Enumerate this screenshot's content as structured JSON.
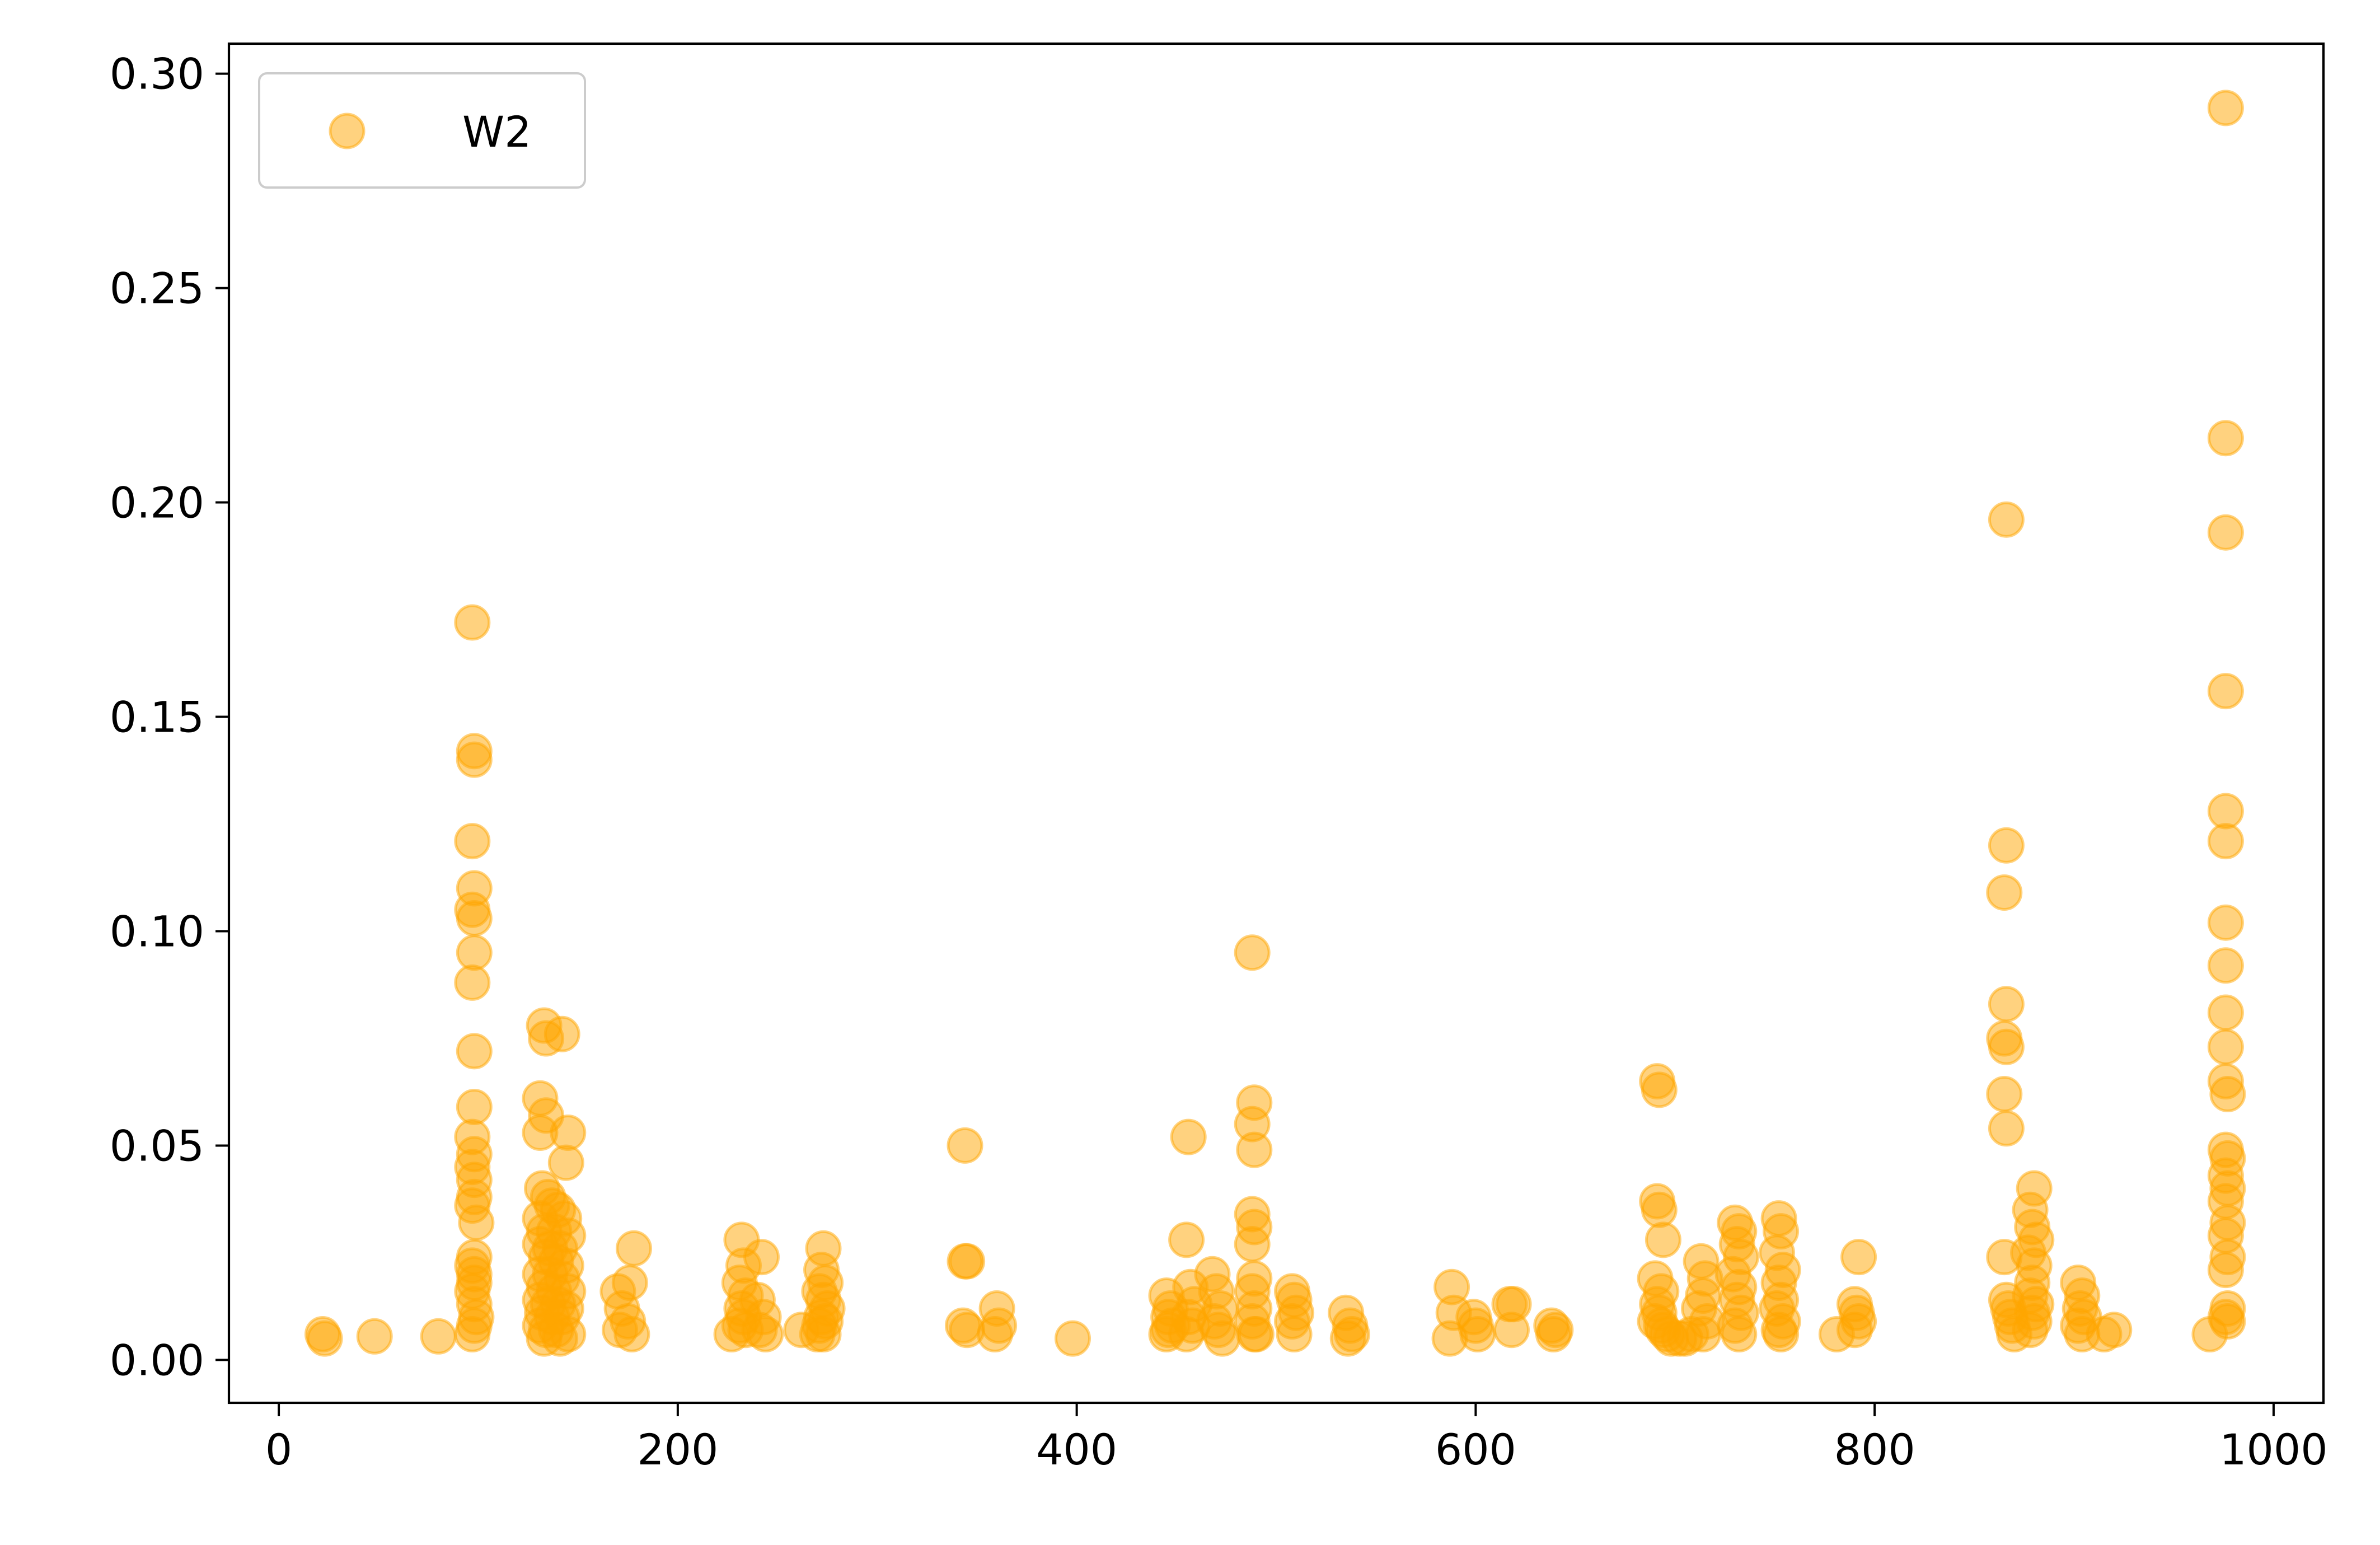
{
  "chart_data": {
    "type": "scatter",
    "title": "",
    "xlabel": "",
    "ylabel": "",
    "xlim": [
      -25,
      1025
    ],
    "ylim": [
      -0.01,
      0.307
    ],
    "xticks": [
      0,
      200,
      400,
      600,
      800,
      1000
    ],
    "yticks": [
      0.0,
      0.05,
      0.1,
      0.15,
      0.2,
      0.25,
      0.3
    ],
    "xtick_labels": [
      "0",
      "200",
      "400",
      "600",
      "800",
      "1000"
    ],
    "ytick_labels": [
      "0.00",
      "0.05",
      "0.10",
      "0.15",
      "0.20",
      "0.25",
      "0.30"
    ],
    "grid": false,
    "legend": {
      "position": "top-left",
      "entries": [
        "W2"
      ]
    },
    "series": [
      {
        "name": "W2",
        "color": "#ffa500",
        "alpha": 0.5,
        "points": [
          [
            22,
            0.006
          ],
          [
            23,
            0.005
          ],
          [
            48,
            0.0055
          ],
          [
            80,
            0.0055
          ],
          [
            97,
            0.172
          ],
          [
            98,
            0.142
          ],
          [
            98,
            0.14
          ],
          [
            97,
            0.121
          ],
          [
            98,
            0.11
          ],
          [
            97,
            0.105
          ],
          [
            98,
            0.103
          ],
          [
            98,
            0.095
          ],
          [
            97,
            0.088
          ],
          [
            98,
            0.072
          ],
          [
            98,
            0.059
          ],
          [
            97,
            0.052
          ],
          [
            98,
            0.048
          ],
          [
            97,
            0.045
          ],
          [
            98,
            0.042
          ],
          [
            98,
            0.038
          ],
          [
            97,
            0.036
          ],
          [
            99,
            0.032
          ],
          [
            98,
            0.024
          ],
          [
            97,
            0.022
          ],
          [
            98,
            0.02
          ],
          [
            98,
            0.018
          ],
          [
            97,
            0.016
          ],
          [
            98,
            0.013
          ],
          [
            99,
            0.01
          ],
          [
            98,
            0.008
          ],
          [
            97,
            0.006
          ],
          [
            133,
            0.078
          ],
          [
            134,
            0.075
          ],
          [
            142,
            0.076
          ],
          [
            131,
            0.061
          ],
          [
            134,
            0.057
          ],
          [
            131,
            0.053
          ],
          [
            145,
            0.053
          ],
          [
            144,
            0.046
          ],
          [
            132,
            0.04
          ],
          [
            135,
            0.038
          ],
          [
            137,
            0.036
          ],
          [
            140,
            0.035
          ],
          [
            131,
            0.033
          ],
          [
            143,
            0.033
          ],
          [
            133,
            0.03
          ],
          [
            138,
            0.03
          ],
          [
            145,
            0.029
          ],
          [
            131,
            0.027
          ],
          [
            136,
            0.026
          ],
          [
            141,
            0.026
          ],
          [
            134,
            0.024
          ],
          [
            139,
            0.023
          ],
          [
            144,
            0.022
          ],
          [
            131,
            0.02
          ],
          [
            136,
            0.02
          ],
          [
            142,
            0.019
          ],
          [
            133,
            0.017
          ],
          [
            138,
            0.016
          ],
          [
            145,
            0.016
          ],
          [
            131,
            0.014
          ],
          [
            135,
            0.013
          ],
          [
            140,
            0.013
          ],
          [
            144,
            0.012
          ],
          [
            132,
            0.011
          ],
          [
            137,
            0.01
          ],
          [
            142,
            0.01
          ],
          [
            131,
            0.008
          ],
          [
            134,
            0.007
          ],
          [
            139,
            0.007
          ],
          [
            145,
            0.006
          ],
          [
            133,
            0.005
          ],
          [
            141,
            0.005
          ],
          [
            170,
            0.016
          ],
          [
            178,
            0.026
          ],
          [
            176,
            0.018
          ],
          [
            172,
            0.012
          ],
          [
            175,
            0.009
          ],
          [
            171,
            0.007
          ],
          [
            177,
            0.006
          ],
          [
            227,
            0.006
          ],
          [
            232,
            0.028
          ],
          [
            233,
            0.022
          ],
          [
            231,
            0.018
          ],
          [
            234,
            0.015
          ],
          [
            232,
            0.012
          ],
          [
            233,
            0.01
          ],
          [
            231,
            0.008
          ],
          [
            234,
            0.007
          ],
          [
            242,
            0.024
          ],
          [
            240,
            0.014
          ],
          [
            243,
            0.01
          ],
          [
            241,
            0.007
          ],
          [
            244,
            0.006
          ],
          [
            262,
            0.007
          ],
          [
            273,
            0.026
          ],
          [
            272,
            0.021
          ],
          [
            274,
            0.018
          ],
          [
            271,
            0.016
          ],
          [
            273,
            0.014
          ],
          [
            275,
            0.012
          ],
          [
            272,
            0.01
          ],
          [
            274,
            0.009
          ],
          [
            271,
            0.008
          ],
          [
            273,
            0.006
          ],
          [
            270,
            0.006
          ],
          [
            344,
            0.05
          ],
          [
            344,
            0.023
          ],
          [
            345,
            0.023
          ],
          [
            343,
            0.008
          ],
          [
            345,
            0.007
          ],
          [
            360,
            0.012
          ],
          [
            361,
            0.008
          ],
          [
            359,
            0.006
          ],
          [
            398,
            0.005
          ],
          [
            445,
            0.015
          ],
          [
            447,
            0.012
          ],
          [
            446,
            0.01
          ],
          [
            448,
            0.008
          ],
          [
            446,
            0.007
          ],
          [
            445,
            0.006
          ],
          [
            456,
            0.052
          ],
          [
            455,
            0.028
          ],
          [
            457,
            0.017
          ],
          [
            459,
            0.013
          ],
          [
            456,
            0.01
          ],
          [
            458,
            0.008
          ],
          [
            455,
            0.006
          ],
          [
            468,
            0.02
          ],
          [
            470,
            0.016
          ],
          [
            472,
            0.012
          ],
          [
            469,
            0.009
          ],
          [
            471,
            0.007
          ],
          [
            473,
            0.005
          ],
          [
            488,
            0.095
          ],
          [
            489,
            0.06
          ],
          [
            488,
            0.055
          ],
          [
            489,
            0.049
          ],
          [
            488,
            0.034
          ],
          [
            489,
            0.031
          ],
          [
            488,
            0.027
          ],
          [
            489,
            0.019
          ],
          [
            488,
            0.016
          ],
          [
            489,
            0.012
          ],
          [
            488,
            0.009
          ],
          [
            489,
            0.006
          ],
          [
            490,
            0.006
          ],
          [
            508,
            0.016
          ],
          [
            509,
            0.014
          ],
          [
            510,
            0.011
          ],
          [
            508,
            0.009
          ],
          [
            509,
            0.006
          ],
          [
            535,
            0.011
          ],
          [
            537,
            0.008
          ],
          [
            538,
            0.006
          ],
          [
            536,
            0.005
          ],
          [
            588,
            0.017
          ],
          [
            589,
            0.011
          ],
          [
            587,
            0.005
          ],
          [
            599,
            0.01
          ],
          [
            600,
            0.008
          ],
          [
            601,
            0.006
          ],
          [
            617,
            0.013
          ],
          [
            619,
            0.013
          ],
          [
            618,
            0.007
          ],
          [
            638,
            0.008
          ],
          [
            640,
            0.007
          ],
          [
            639,
            0.006
          ],
          [
            691,
            0.065
          ],
          [
            692,
            0.063
          ],
          [
            691,
            0.037
          ],
          [
            692,
            0.035
          ],
          [
            694,
            0.028
          ],
          [
            690,
            0.019
          ],
          [
            693,
            0.016
          ],
          [
            691,
            0.013
          ],
          [
            692,
            0.011
          ],
          [
            690,
            0.009
          ],
          [
            693,
            0.008
          ],
          [
            694,
            0.007
          ],
          [
            696,
            0.006
          ],
          [
            698,
            0.005
          ],
          [
            702,
            0.005
          ],
          [
            705,
            0.005
          ],
          [
            708,
            0.006
          ],
          [
            713,
            0.023
          ],
          [
            715,
            0.019
          ],
          [
            714,
            0.015
          ],
          [
            712,
            0.012
          ],
          [
            716,
            0.009
          ],
          [
            714,
            0.006
          ],
          [
            730,
            0.032
          ],
          [
            732,
            0.03
          ],
          [
            731,
            0.027
          ],
          [
            733,
            0.024
          ],
          [
            729,
            0.02
          ],
          [
            732,
            0.017
          ],
          [
            731,
            0.014
          ],
          [
            733,
            0.011
          ],
          [
            730,
            0.008
          ],
          [
            732,
            0.006
          ],
          [
            752,
            0.033
          ],
          [
            753,
            0.03
          ],
          [
            751,
            0.025
          ],
          [
            754,
            0.021
          ],
          [
            752,
            0.018
          ],
          [
            753,
            0.014
          ],
          [
            751,
            0.012
          ],
          [
            754,
            0.009
          ],
          [
            752,
            0.007
          ],
          [
            753,
            0.006
          ],
          [
            781,
            0.006
          ],
          [
            792,
            0.024
          ],
          [
            790,
            0.013
          ],
          [
            791,
            0.011
          ],
          [
            792,
            0.009
          ],
          [
            790,
            0.007
          ],
          [
            866,
            0.196
          ],
          [
            866,
            0.12
          ],
          [
            865,
            0.109
          ],
          [
            866,
            0.083
          ],
          [
            865,
            0.075
          ],
          [
            866,
            0.073
          ],
          [
            865,
            0.062
          ],
          [
            866,
            0.054
          ],
          [
            865,
            0.024
          ],
          [
            866,
            0.014
          ],
          [
            867,
            0.012
          ],
          [
            868,
            0.01
          ],
          [
            869,
            0.008
          ],
          [
            870,
            0.006
          ],
          [
            880,
            0.04
          ],
          [
            878,
            0.035
          ],
          [
            879,
            0.031
          ],
          [
            881,
            0.028
          ],
          [
            877,
            0.025
          ],
          [
            880,
            0.022
          ],
          [
            879,
            0.018
          ],
          [
            878,
            0.015
          ],
          [
            881,
            0.013
          ],
          [
            879,
            0.011
          ],
          [
            880,
            0.009
          ],
          [
            878,
            0.007
          ],
          [
            902,
            0.018
          ],
          [
            904,
            0.015
          ],
          [
            903,
            0.012
          ],
          [
            905,
            0.01
          ],
          [
            902,
            0.008
          ],
          [
            904,
            0.006
          ],
          [
            915,
            0.006
          ],
          [
            920,
            0.007
          ],
          [
            968,
            0.006
          ],
          [
            976,
            0.292
          ],
          [
            976,
            0.215
          ],
          [
            976,
            0.193
          ],
          [
            976,
            0.156
          ],
          [
            976,
            0.128
          ],
          [
            976,
            0.121
          ],
          [
            976,
            0.102
          ],
          [
            976,
            0.092
          ],
          [
            976,
            0.081
          ],
          [
            976,
            0.073
          ],
          [
            976,
            0.065
          ],
          [
            977,
            0.062
          ],
          [
            976,
            0.049
          ],
          [
            977,
            0.047
          ],
          [
            976,
            0.043
          ],
          [
            977,
            0.04
          ],
          [
            976,
            0.037
          ],
          [
            977,
            0.032
          ],
          [
            976,
            0.029
          ],
          [
            977,
            0.024
          ],
          [
            976,
            0.021
          ],
          [
            977,
            0.012
          ],
          [
            976,
            0.01
          ],
          [
            977,
            0.009
          ]
        ]
      }
    ]
  }
}
